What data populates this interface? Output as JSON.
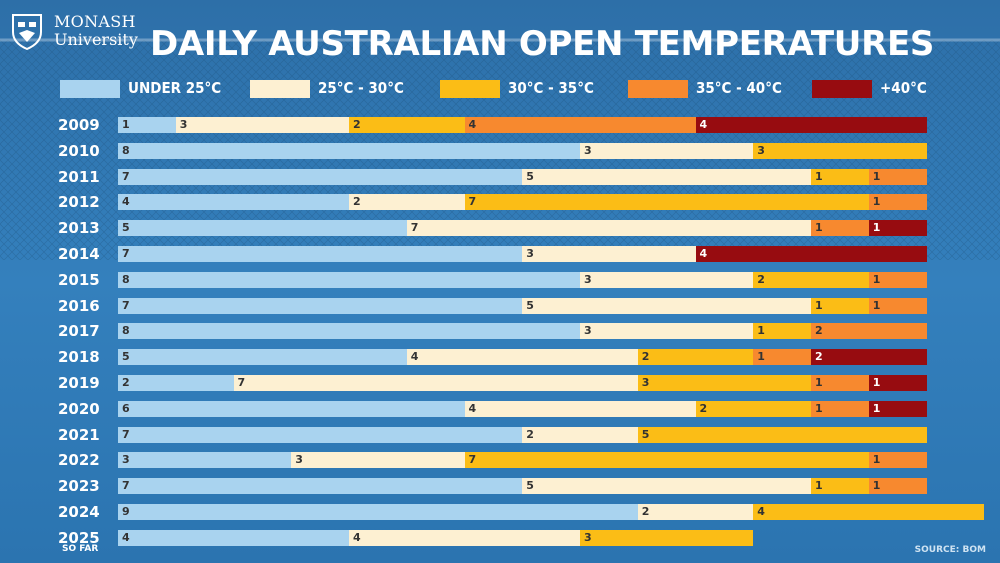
{
  "logo": {
    "line1": "MONASH",
    "line2": "University"
  },
  "title": "DAILY AUSTRALIAN OPEN TEMPERATURES",
  "source": "SOURCE: BOM",
  "so_far_note": "SO FAR",
  "colors": {
    "background": "#2f78b3",
    "under25": "#a9d3ef",
    "c25_30": "#fdf0d2",
    "c30_35": "#fbbd16",
    "c35_40": "#f7892f",
    "c40plus": "#970c10"
  },
  "legend": [
    {
      "label": "UNDER 25°C",
      "color": "#a9d3ef"
    },
    {
      "label": "25°C - 30°C",
      "color": "#fdf0d2"
    },
    {
      "label": "30°C - 35°C",
      "color": "#fbbd16"
    },
    {
      "label": "35°C - 40°C",
      "color": "#f7892f"
    },
    {
      "label": "+40°C",
      "color": "#970c10"
    }
  ],
  "chart_data": {
    "type": "bar",
    "orientation": "horizontal",
    "stacked": true,
    "title": "DAILY AUSTRALIAN OPEN TEMPERATURES",
    "categories": [
      "2009",
      "2010",
      "2011",
      "2012",
      "2013",
      "2014",
      "2015",
      "2016",
      "2017",
      "2018",
      "2019",
      "2020",
      "2021",
      "2022",
      "2023",
      "2024",
      "2025"
    ],
    "series": [
      {
        "name": "UNDER 25°C",
        "values": [
          1,
          8,
          7,
          4,
          5,
          7,
          8,
          7,
          8,
          5,
          2,
          6,
          7,
          3,
          7,
          9,
          4
        ]
      },
      {
        "name": "25°C - 30°C",
        "values": [
          3,
          3,
          5,
          2,
          7,
          3,
          3,
          5,
          3,
          4,
          7,
          4,
          2,
          3,
          5,
          2,
          4
        ]
      },
      {
        "name": "30°C - 35°C",
        "values": [
          2,
          3,
          1,
          7,
          0,
          0,
          2,
          1,
          1,
          2,
          3,
          2,
          5,
          7,
          1,
          4,
          3
        ]
      },
      {
        "name": "35°C - 40°C",
        "values": [
          4,
          0,
          1,
          1,
          1,
          0,
          1,
          1,
          2,
          1,
          1,
          1,
          0,
          1,
          1,
          0,
          0
        ]
      },
      {
        "name": "+40°C",
        "values": [
          4,
          0,
          0,
          0,
          1,
          4,
          0,
          0,
          0,
          2,
          1,
          1,
          0,
          0,
          0,
          0,
          0
        ]
      }
    ],
    "annotations": [
      {
        "category": "2025",
        "text": "SO FAR"
      }
    ]
  }
}
